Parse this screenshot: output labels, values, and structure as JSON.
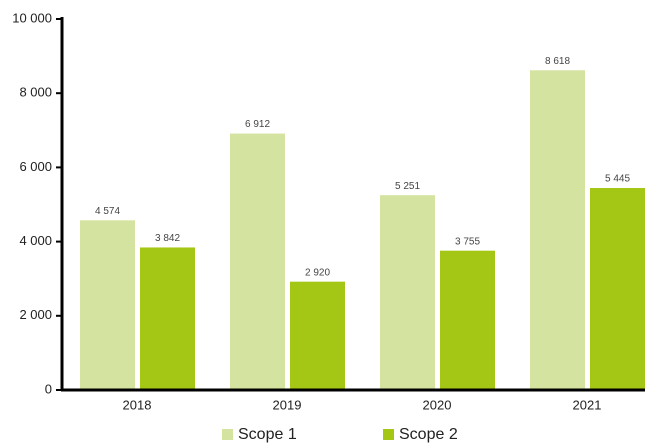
{
  "chart_data": {
    "type": "bar",
    "categories": [
      "2018",
      "2019",
      "2020",
      "2021"
    ],
    "series": [
      {
        "name": "Scope 1",
        "color": "#d5e3a0",
        "values": [
          4574,
          6912,
          5251,
          8618
        ],
        "value_labels": [
          "4 574",
          "6 912",
          "5 251",
          "8 618"
        ]
      },
      {
        "name": "Scope 2",
        "color": "#a4c615",
        "values": [
          3842,
          2920,
          3755,
          5445
        ],
        "value_labels": [
          "3 842",
          "2 920",
          "3 755",
          "5 445"
        ]
      }
    ],
    "ylim": [
      0,
      10000
    ],
    "yticks": [
      0,
      {
        "value": 2000,
        "label": "2 000"
      },
      {
        "value": 4000,
        "label": "4 000"
      },
      {
        "value": 6000,
        "label": "6 000"
      },
      {
        "value": 8000,
        "label": "8 000"
      },
      {
        "value": 10000,
        "label": "10 000"
      }
    ],
    "grid": false,
    "legend": "bottom"
  }
}
